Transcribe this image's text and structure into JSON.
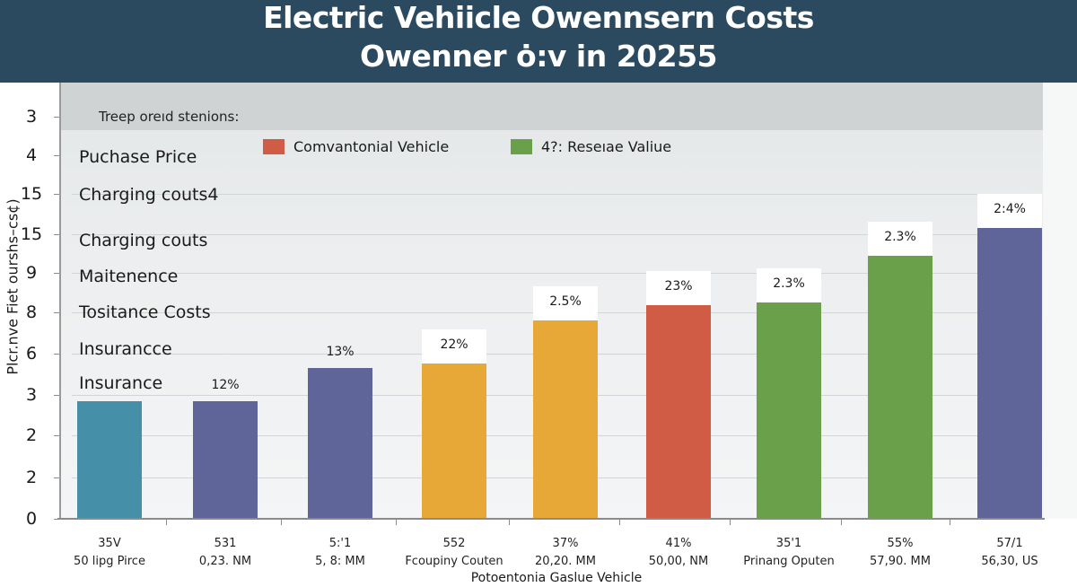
{
  "header": {
    "title_line1": "Electric Vehiicle Owennsern Costs",
    "title_line2": "Owenner ȯ:v in 20255"
  },
  "colors": {
    "header_bg": "#2b4a5f",
    "teal": "#4590a8",
    "purple": "#5f6598",
    "orange": "#e8a838",
    "red": "#d05c45",
    "green": "#6aa04a"
  },
  "annotations": {
    "header": "Treep oreıd  stenions:",
    "categories": [
      "Puchase Price",
      "Charging couts4",
      "Charging couts",
      "Maitenence",
      "Tositance Costs",
      "Insurancce",
      "Insurance"
    ]
  },
  "chart_data": {
    "type": "bar",
    "title": "Electric Vehiicle Owennsern Costs Owenner ȯ:v in 20255",
    "ylabel": "Plcr.nve Fiet ourshs–cs¢)",
    "xlabel": "Potoentonia Gaslue Vehicle",
    "y_tick_labels": [
      "3",
      "4",
      "15",
      "15",
      "9",
      "8",
      "6",
      "3",
      "2",
      "2",
      "0"
    ],
    "ylim": [
      0,
      10
    ],
    "grid": true,
    "legend": {
      "placement": "top-center",
      "entries": [
        {
          "label": "Comvantonial Vehicle",
          "color": "#d05c45"
        },
        {
          "label": "4?: Reseıae Valiue",
          "color": "#6aa04a"
        }
      ]
    },
    "categories": [
      "35V 50 lipg Pirce",
      "531 0,23. NM",
      "5:'1 5, 8: MM",
      "552 Fcoupiny Couten",
      "37% 20,20. MM",
      "41% 50,00, NM",
      "35'1 Prinang Oputen",
      "55% 57,90. MM",
      "57/1 56,30, US"
    ],
    "x_labels": [
      {
        "line1": "35V",
        "line2": "50 lipg Pirce"
      },
      {
        "line1": "531",
        "line2": "0,23. NM"
      },
      {
        "line1": "5:'1",
        "line2": "5, 8: MM"
      },
      {
        "line1": "552",
        "line2": "Fcoupiny Couten"
      },
      {
        "line1": "37%",
        "line2": "20,20. MM"
      },
      {
        "line1": "41%",
        "line2": "50,00, NM"
      },
      {
        "line1": "35'1",
        "line2": "Prinang Oputen"
      },
      {
        "line1": "55%",
        "line2": "57,90. MM"
      },
      {
        "line1": "57/1",
        "line2": "56,30, US"
      }
    ],
    "values": [
      2.9,
      2.9,
      3.7,
      3.8,
      4.8,
      5.2,
      5.2,
      6.3,
      7.0
    ],
    "bar_colors": [
      "#4590a8",
      "#5f6598",
      "#5f6598",
      "#e8a838",
      "#e8a838",
      "#d05c45",
      "#6aa04a",
      "#6aa04a",
      "#5f6598"
    ],
    "data_labels": [
      "",
      "12%",
      "13%",
      "22%",
      "2.5%",
      "23%",
      "2.3%",
      "2.3%",
      "2:4%"
    ],
    "data_label_boxed": [
      false,
      false,
      false,
      true,
      true,
      true,
      true,
      true,
      true
    ]
  }
}
